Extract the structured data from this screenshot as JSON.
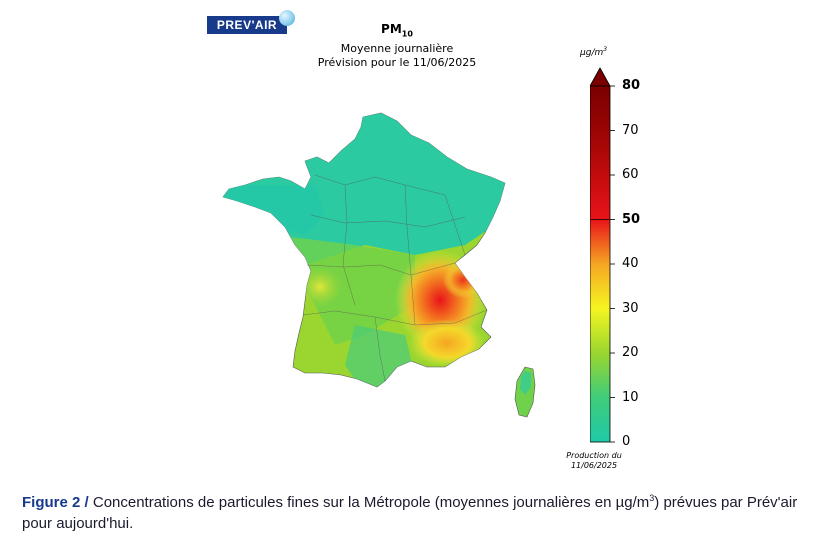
{
  "logo": {
    "text": "PREV'AIR"
  },
  "map_title": {
    "main": "PM",
    "main_sub": "10",
    "line1": "Moyenne journalière",
    "line2": "Prévision pour le 11/06/2025"
  },
  "colorbar": {
    "unit_base": "µg/m",
    "unit_sup": "3",
    "ticks": [
      {
        "value": 0,
        "label": "0",
        "bold": false
      },
      {
        "value": 10,
        "label": "10",
        "bold": false
      },
      {
        "value": 20,
        "label": "20",
        "bold": false
      },
      {
        "value": 30,
        "label": "30",
        "bold": false
      },
      {
        "value": 40,
        "label": "40",
        "bold": false
      },
      {
        "value": 50,
        "label": "50",
        "bold": true
      },
      {
        "value": 60,
        "label": "60",
        "bold": false
      },
      {
        "value": 70,
        "label": "70",
        "bold": false
      },
      {
        "value": 80,
        "label": "80",
        "bold": true
      }
    ],
    "range": [
      0,
      80
    ],
    "production_line1": "Production du",
    "production_line2": "11/06/2025",
    "colors": {
      "low": "#1fc9a8",
      "green": "#9ad62f",
      "yellow": "#f5f521",
      "orange": "#f5a623",
      "red": "#e8141a",
      "darkred": "#7a0000"
    }
  },
  "caption": {
    "label": "Figure 2 /",
    "text_before_unit": " Concentrations de particules fines sur la Métropole (moyennes journalières en µg/m",
    "unit_sup": "3",
    "text_after_unit": ") prévues par Prév'air pour aujourd'hui."
  }
}
